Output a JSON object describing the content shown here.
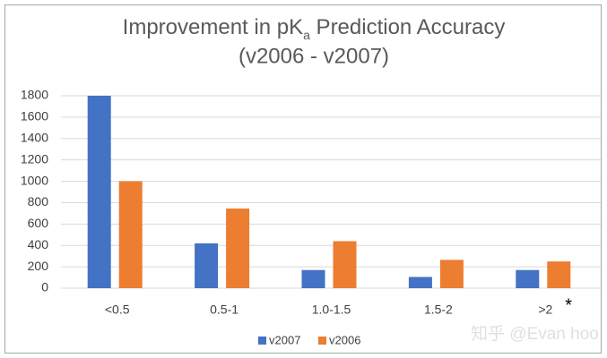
{
  "chart_data": {
    "type": "bar",
    "title": [
      "Improvement in pK",
      "a",
      " Prediction Accuracy"
    ],
    "subtitle": "(v2006 - v2007)",
    "categories": [
      "<0.5",
      "0.5-1",
      "1.0-1.5",
      "1.5-2",
      ">2"
    ],
    "series": [
      {
        "name": "v2007",
        "color": "#4472c4",
        "values": [
          1800,
          420,
          170,
          105,
          170
        ]
      },
      {
        "name": "v2006",
        "color": "#ed7d31",
        "values": [
          1000,
          745,
          440,
          265,
          250
        ]
      }
    ],
    "ylim": [
      0,
      1800
    ],
    "yticks": [
      0,
      200,
      400,
      600,
      800,
      1000,
      1200,
      1400,
      1600,
      1800
    ],
    "grid": true,
    "legend": "bottom",
    "annotation": "*",
    "watermark": "知乎 @Evan hoo"
  }
}
